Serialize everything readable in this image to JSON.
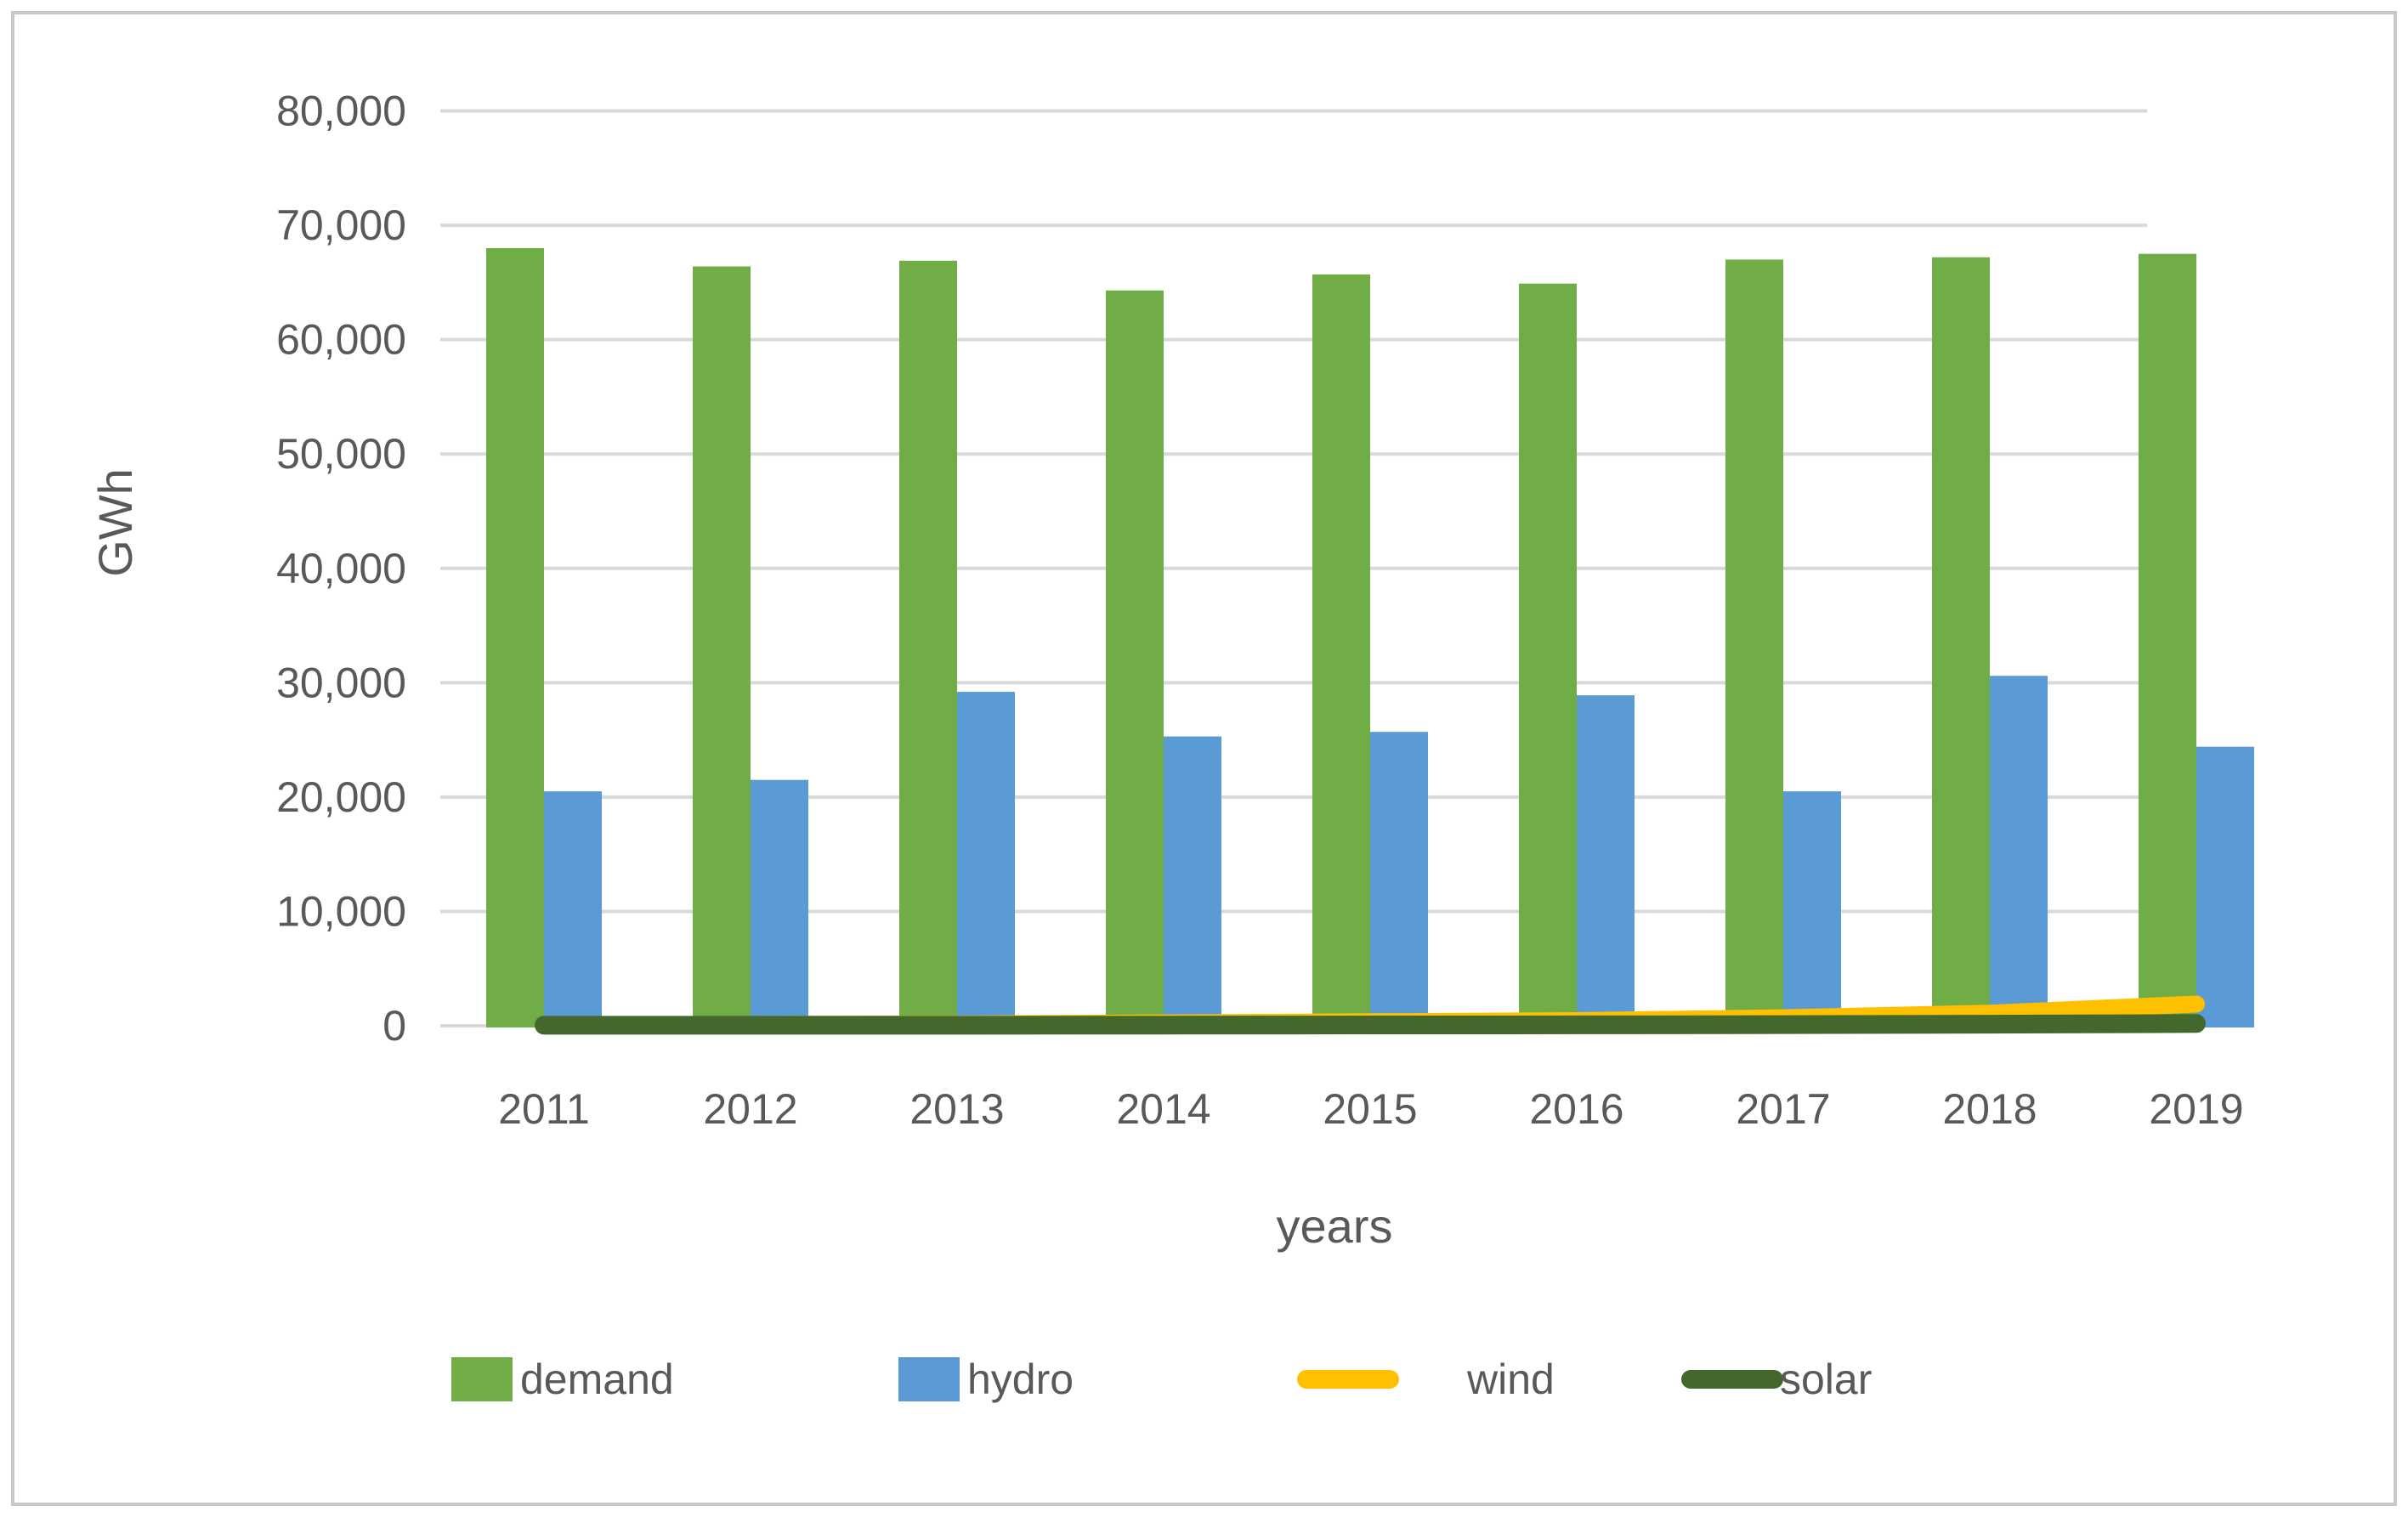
{
  "figure": {
    "background_color": "#FFFFFF",
    "border_color": "#C8C8C8",
    "text_color": "#595959",
    "gridline_color": "#D9D9D9"
  },
  "chart_data": {
    "type": "bar",
    "subtype": "grouped-bar-with-line-overlay",
    "title": "",
    "xlabel": "years",
    "ylabel": "GWh",
    "categories": [
      "2011",
      "2012",
      "2013",
      "2014",
      "2015",
      "2016",
      "2017",
      "2018",
      "2019"
    ],
    "series": [
      {
        "name": "demand",
        "type": "bar",
        "color": "#70AD47",
        "values": [
          68000,
          66400,
          66900,
          64300,
          65700,
          64900,
          67000,
          67200,
          67500
        ]
      },
      {
        "name": "hydro",
        "type": "bar",
        "color": "#5B9BD5",
        "values": [
          20500,
          21500,
          29200,
          25300,
          25700,
          28900,
          20500,
          30600,
          24400
        ]
      },
      {
        "name": "wind",
        "type": "line",
        "color": "#FFC000",
        "values": [
          100,
          120,
          150,
          250,
          350,
          450,
          700,
          1100,
          1900
        ]
      },
      {
        "name": "solar",
        "type": "line",
        "color": "#44682B",
        "values": [
          50,
          50,
          50,
          60,
          70,
          80,
          100,
          140,
          200
        ]
      }
    ],
    "y_axis": {
      "min": 0,
      "max": 80000,
      "tick_interval": 10000,
      "tick_labels": [
        "0",
        "10,000",
        "20,000",
        "30,000",
        "40,000",
        "50,000",
        "60,000",
        "70,000",
        "80,000"
      ],
      "gridlines": "on"
    },
    "legend": {
      "position": "bottom",
      "items": [
        "demand",
        "hydro",
        "wind",
        "solar"
      ]
    }
  }
}
